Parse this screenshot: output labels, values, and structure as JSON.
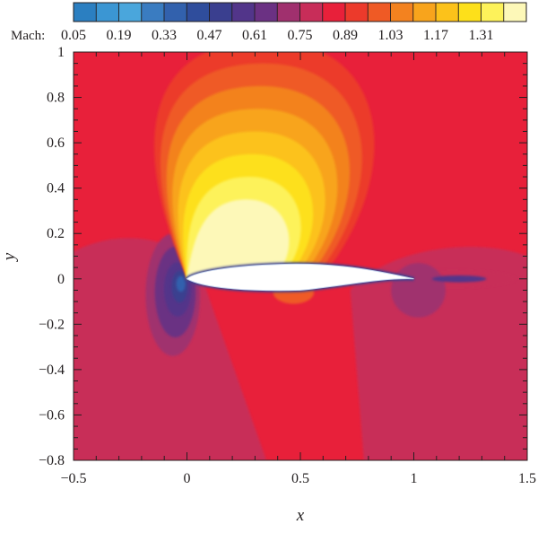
{
  "chart_data": {
    "type": "heatmap",
    "title": "",
    "xlabel": "x",
    "ylabel": "y",
    "xlim": [
      -0.5,
      1.5
    ],
    "ylim": [
      -0.8,
      1.0
    ],
    "x_ticks": [
      {
        "value": -0.5,
        "label": "−0.5"
      },
      {
        "value": 0,
        "label": "0"
      },
      {
        "value": 0.5,
        "label": "0.5"
      },
      {
        "value": 1,
        "label": "1"
      },
      {
        "value": 1.5,
        "label": "1.5"
      }
    ],
    "y_ticks": [
      {
        "value": 1,
        "label": "1"
      },
      {
        "value": 0.8,
        "label": "0.8"
      },
      {
        "value": 0.6,
        "label": "0.6"
      },
      {
        "value": 0.4,
        "label": "0.4"
      },
      {
        "value": 0.2,
        "label": "0.2"
      },
      {
        "value": 0,
        "label": "0"
      },
      {
        "value": -0.2,
        "label": "−0.2"
      },
      {
        "value": -0.4,
        "label": "−0.4"
      },
      {
        "value": -0.6,
        "label": "−0.6"
      },
      {
        "value": -0.8,
        "label": "−0.8"
      }
    ],
    "colorbar": {
      "label": "Mach:",
      "tick_labels": [
        "0.05",
        "0.19",
        "0.33",
        "0.47",
        "0.61",
        "0.75",
        "0.89",
        "1.03",
        "1.17",
        "1.31"
      ],
      "min": 0.05,
      "max": 1.45,
      "levels": [
        {
          "level": 0.05,
          "color": "#2b7fc1"
        },
        {
          "level": 0.12,
          "color": "#3b96d3"
        },
        {
          "level": 0.19,
          "color": "#4aa6dc"
        },
        {
          "level": 0.26,
          "color": "#3a7cc1"
        },
        {
          "level": 0.33,
          "color": "#3261ad"
        },
        {
          "level": 0.4,
          "color": "#2f4d9c"
        },
        {
          "level": 0.47,
          "color": "#3a3f8f"
        },
        {
          "level": 0.54,
          "color": "#52358a"
        },
        {
          "level": 0.61,
          "color": "#6b3183"
        },
        {
          "level": 0.68,
          "color": "#a0306e"
        },
        {
          "level": 0.75,
          "color": "#c82d59"
        },
        {
          "level": 0.82,
          "color": "#e8203a"
        },
        {
          "level": 0.89,
          "color": "#ec3a2b"
        },
        {
          "level": 0.96,
          "color": "#ef5a25"
        },
        {
          "level": 1.03,
          "color": "#f3821f"
        },
        {
          "level": 1.1,
          "color": "#f8a41c"
        },
        {
          "level": 1.17,
          "color": "#fcc21a"
        },
        {
          "level": 1.24,
          "color": "#fde01a"
        },
        {
          "level": 1.31,
          "color": "#fdf25a"
        },
        {
          "level": 1.38,
          "color": "#fdf8b8"
        }
      ]
    },
    "field": {
      "background_mach": 0.86,
      "features": [
        {
          "name": "supersonic region",
          "shape": "ellipse",
          "cx": 0.25,
          "cy": 0.2,
          "rx": 0.12,
          "ry": 0.2,
          "mach": 1.3
        },
        {
          "name": "stagnation point",
          "x": 0.0,
          "y": 0.0,
          "mach": 0.05
        },
        {
          "name": "wake",
          "x_range": [
            0.9,
            1.45
          ],
          "y": 0.0,
          "mach": 0.55
        }
      ]
    },
    "airfoil_fill": "#ffffff"
  }
}
